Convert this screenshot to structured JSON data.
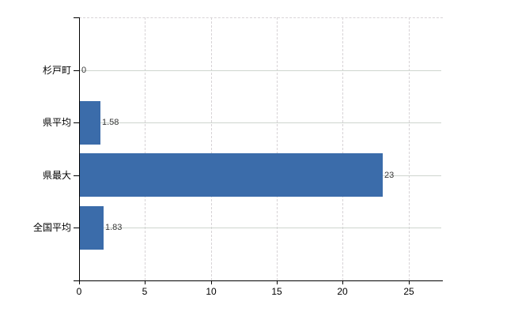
{
  "chart_data": {
    "type": "bar",
    "orientation": "horizontal",
    "title": "",
    "xlabel": "",
    "ylabel": "",
    "categories": [
      "杉戸町",
      "県平均",
      "県最大",
      "全国平均"
    ],
    "values": [
      0,
      1.58,
      23,
      1.83
    ],
    "value_labels": [
      "0",
      "1.58",
      "23",
      "1.83"
    ],
    "x_ticks": [
      "0",
      "5",
      "10",
      "15",
      "20",
      "25"
    ],
    "x_tick_values": [
      0,
      5,
      10,
      15,
      20,
      25
    ],
    "xlim": [
      0,
      27.6
    ],
    "grid": true,
    "legend": false,
    "colors": {
      "bar": "#3b6caa",
      "axis": "#000000",
      "grid_vertical": "#d7d3d6",
      "grid_horizontal": "#ced5ce",
      "value_label": "#3a3a3a",
      "tick_label": "#000000",
      "category_label": "#000000",
      "background": "#ffffff"
    }
  }
}
